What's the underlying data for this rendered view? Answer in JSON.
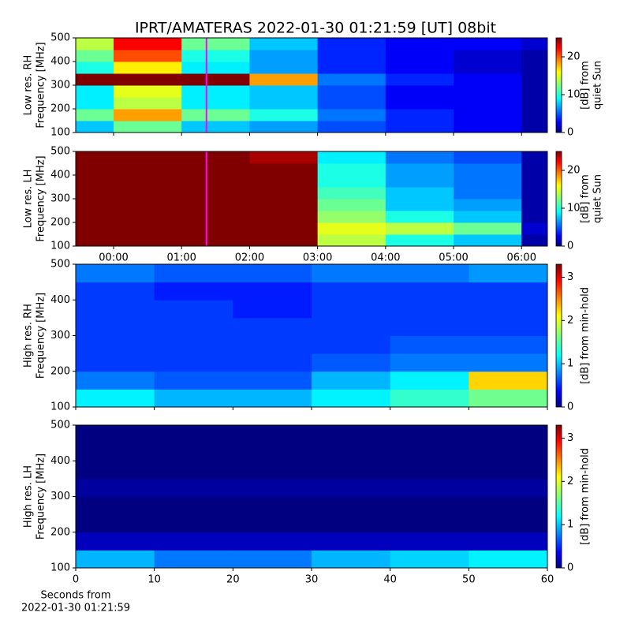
{
  "chart_data": [
    {
      "type": "heatmap",
      "title": "IPRT/AMATERAS 2022-01-30 01:21:59 [UT]   08bit",
      "ylabel": [
        "Low res. RH",
        "Frequency [MHz]"
      ],
      "colorbar_label": [
        "[dB] from",
        "quiet Sun"
      ],
      "x_edges": [
        -0.557,
        0,
        1,
        2,
        3,
        4,
        5,
        6,
        6.38
      ],
      "y_edges": [
        100,
        150,
        200,
        250,
        300,
        350,
        400,
        450,
        500
      ],
      "z": [
        [
          8,
          12,
          8,
          7,
          5,
          4,
          3,
          1
        ],
        [
          12,
          18,
          12,
          10,
          6,
          4,
          3,
          1
        ],
        [
          9,
          14,
          9,
          8,
          5,
          3,
          3,
          1
        ],
        [
          9,
          15,
          9,
          8,
          5,
          3,
          3,
          1
        ],
        [
          25,
          25,
          25,
          18,
          6,
          4,
          3,
          1
        ],
        [
          10,
          16,
          9,
          7,
          4,
          3,
          2,
          1
        ],
        [
          12,
          20,
          10,
          7,
          4,
          3,
          2,
          1
        ],
        [
          14,
          22,
          12,
          8,
          4,
          3,
          3,
          2
        ]
      ],
      "xlim": [
        -0.557,
        6.38
      ],
      "xticks": [
        {
          "value": 0,
          "label": "00:00"
        },
        {
          "value": 1,
          "label": "01:00"
        },
        {
          "value": 2,
          "label": "02:00"
        },
        {
          "value": 3,
          "label": "03:00"
        },
        {
          "value": 4,
          "label": "04:00"
        },
        {
          "value": 5,
          "label": "05:00"
        },
        {
          "value": 6,
          "label": "06:00"
        }
      ],
      "show_xticklabels": false,
      "ylim": [
        100,
        500
      ],
      "yticks": [
        100,
        200,
        300,
        400,
        500
      ],
      "clim": [
        0,
        25
      ],
      "cticks": [
        0,
        10,
        20
      ],
      "marker_time": 1.366,
      "marker_color": "#ff00ff"
    },
    {
      "type": "heatmap",
      "ylabel": [
        "Low res. LH",
        "Frequency [MHz]"
      ],
      "colorbar_label": [
        "[dB] from",
        "quiet Sun"
      ],
      "x_edges": [
        -0.557,
        0,
        1,
        2,
        3,
        4,
        5,
        6,
        6.38
      ],
      "y_edges": [
        100,
        150,
        200,
        250,
        300,
        350,
        400,
        450,
        500
      ],
      "z": [
        [
          25,
          25,
          25,
          25,
          14,
          10,
          8,
          1
        ],
        [
          25,
          25,
          25,
          25,
          15,
          14,
          12,
          2
        ],
        [
          25,
          25,
          25,
          25,
          13,
          10,
          8,
          1
        ],
        [
          25,
          25,
          25,
          25,
          12,
          8,
          7,
          1
        ],
        [
          25,
          25,
          25,
          25,
          11,
          8,
          6,
          1
        ],
        [
          25,
          25,
          25,
          25,
          10,
          7,
          6,
          1
        ],
        [
          25,
          25,
          25,
          25,
          10,
          7,
          6,
          1
        ],
        [
          25,
          25,
          25,
          24,
          9,
          6,
          5,
          1
        ]
      ],
      "xlim": [
        -0.557,
        6.38
      ],
      "xticks": [
        {
          "value": 0,
          "label": "00:00"
        },
        {
          "value": 1,
          "label": "01:00"
        },
        {
          "value": 2,
          "label": "02:00"
        },
        {
          "value": 3,
          "label": "03:00"
        },
        {
          "value": 4,
          "label": "04:00"
        },
        {
          "value": 5,
          "label": "05:00"
        },
        {
          "value": 6,
          "label": "06:00"
        }
      ],
      "show_xticklabels": true,
      "ylim": [
        100,
        500
      ],
      "yticks": [
        100,
        200,
        300,
        400,
        500
      ],
      "clim": [
        0,
        25
      ],
      "cticks": [
        0,
        10,
        20
      ],
      "marker_time": 1.366,
      "marker_color": "#ff00ff"
    },
    {
      "type": "heatmap",
      "ylabel": [
        "High res. RH",
        "Frequency [MHz]"
      ],
      "colorbar_label": [
        "[dB] from min-hold"
      ],
      "x_edges": [
        0,
        10,
        20,
        30,
        40,
        50,
        60
      ],
      "y_edges": [
        100,
        150,
        200,
        250,
        300,
        350,
        400,
        450,
        500
      ],
      "z": [
        [
          1.2,
          1.0,
          1.0,
          1.2,
          1.4,
          1.6
        ],
        [
          0.8,
          0.7,
          0.7,
          1.0,
          1.2,
          2.2
        ],
        [
          0.6,
          0.6,
          0.6,
          0.7,
          0.8,
          0.8
        ],
        [
          0.6,
          0.6,
          0.6,
          0.6,
          0.7,
          0.7
        ],
        [
          0.6,
          0.6,
          0.6,
          0.6,
          0.6,
          0.6
        ],
        [
          0.6,
          0.6,
          0.5,
          0.6,
          0.6,
          0.6
        ],
        [
          0.6,
          0.5,
          0.5,
          0.6,
          0.6,
          0.6
        ],
        [
          0.8,
          0.7,
          0.7,
          0.8,
          0.8,
          0.9
        ]
      ],
      "xlim": [
        0,
        60
      ],
      "xticks": [
        0,
        10,
        20,
        30,
        40,
        50,
        60
      ],
      "show_xticklabels": false,
      "ylim": [
        100,
        500
      ],
      "yticks": [
        100,
        200,
        300,
        400,
        500
      ],
      "clim": [
        0,
        3.3
      ],
      "cticks": [
        0,
        1,
        2,
        3
      ]
    },
    {
      "type": "heatmap",
      "ylabel": [
        "High res. LH",
        "Frequency [MHz]"
      ],
      "colorbar_label": [
        "[dB] from min-hold"
      ],
      "xlabel": [
        "Seconds from",
        "2022-01-30 01:21:59"
      ],
      "x_edges": [
        0,
        10,
        20,
        30,
        40,
        50,
        60
      ],
      "y_edges": [
        100,
        150,
        200,
        250,
        300,
        350,
        400,
        450,
        500
      ],
      "z": [
        [
          1.0,
          0.8,
          0.8,
          1.0,
          1.1,
          1.2
        ],
        [
          0.2,
          0.2,
          0.2,
          0.2,
          0.2,
          0.2
        ],
        [
          0,
          0,
          0,
          0,
          0,
          0
        ],
        [
          0,
          0,
          0,
          0,
          0,
          0
        ],
        [
          0.1,
          0.1,
          0.1,
          0.1,
          0.1,
          0.1
        ],
        [
          0,
          0,
          0,
          0,
          0,
          0
        ],
        [
          0,
          0,
          0,
          0,
          0,
          0
        ],
        [
          0,
          0,
          0,
          0,
          0,
          0
        ]
      ],
      "xlim": [
        0,
        60
      ],
      "xticks": [
        0,
        10,
        20,
        30,
        40,
        50,
        60
      ],
      "show_xticklabels": true,
      "ylim": [
        100,
        500
      ],
      "yticks": [
        100,
        200,
        300,
        400,
        500
      ],
      "clim": [
        0,
        3.3
      ],
      "cticks": [
        0,
        1,
        2,
        3
      ]
    }
  ]
}
